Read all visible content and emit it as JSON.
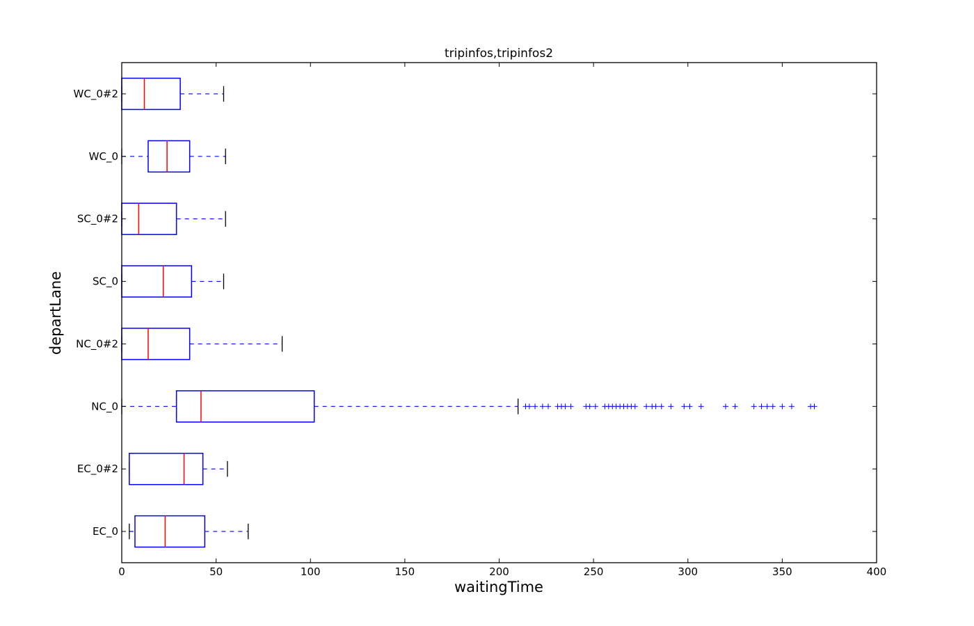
{
  "chart_data": {
    "type": "boxplot",
    "orientation": "horizontal",
    "title": "tripinfos,tripinfos2",
    "xlabel": "waitingTime",
    "ylabel": "departLane",
    "xlim": [
      0,
      400
    ],
    "xticks": [
      0,
      50,
      100,
      150,
      200,
      250,
      300,
      350,
      400
    ],
    "grid": false,
    "colors": {
      "box": "#0000ff",
      "median": "#ff0000",
      "cap": "#000000",
      "flier": "#0000ff"
    },
    "categories": [
      "EC_0",
      "EC_0#2",
      "NC_0",
      "NC_0#2",
      "SC_0",
      "SC_0#2",
      "WC_0",
      "WC_0#2"
    ],
    "boxes": [
      {
        "label": "EC_0",
        "whisker_low": 4,
        "q1": 7,
        "median": 23,
        "q3": 44,
        "whisker_high": 67,
        "fliers": []
      },
      {
        "label": "EC_0#2",
        "whisker_low": 4,
        "q1": 4,
        "median": 33,
        "q3": 43,
        "whisker_high": 56,
        "fliers": []
      },
      {
        "label": "NC_0",
        "whisker_low": 0,
        "q1": 29,
        "median": 42,
        "q3": 102,
        "whisker_high": 210,
        "fliers": [
          214,
          216,
          219,
          223,
          226,
          231,
          233,
          235,
          238,
          246,
          248,
          251,
          256,
          258,
          260,
          262,
          264,
          266,
          268,
          270,
          272,
          278,
          281,
          283,
          286,
          291,
          298,
          301,
          307,
          320,
          325,
          335,
          339,
          342,
          345,
          350,
          355,
          365,
          367
        ]
      },
      {
        "label": "NC_0#2",
        "whisker_low": 0,
        "q1": 0,
        "median": 14,
        "q3": 36,
        "whisker_high": 85,
        "fliers": []
      },
      {
        "label": "SC_0",
        "whisker_low": 0,
        "q1": 0,
        "median": 22,
        "q3": 37,
        "whisker_high": 54,
        "fliers": []
      },
      {
        "label": "SC_0#2",
        "whisker_low": 0,
        "q1": 0,
        "median": 9,
        "q3": 29,
        "whisker_high": 55,
        "fliers": []
      },
      {
        "label": "WC_0",
        "whisker_low": 0,
        "q1": 14,
        "median": 24,
        "q3": 36,
        "whisker_high": 55,
        "fliers": []
      },
      {
        "label": "WC_0#2",
        "whisker_low": 0,
        "q1": 0,
        "median": 12,
        "q3": 31,
        "whisker_high": 54,
        "fliers": []
      }
    ]
  }
}
